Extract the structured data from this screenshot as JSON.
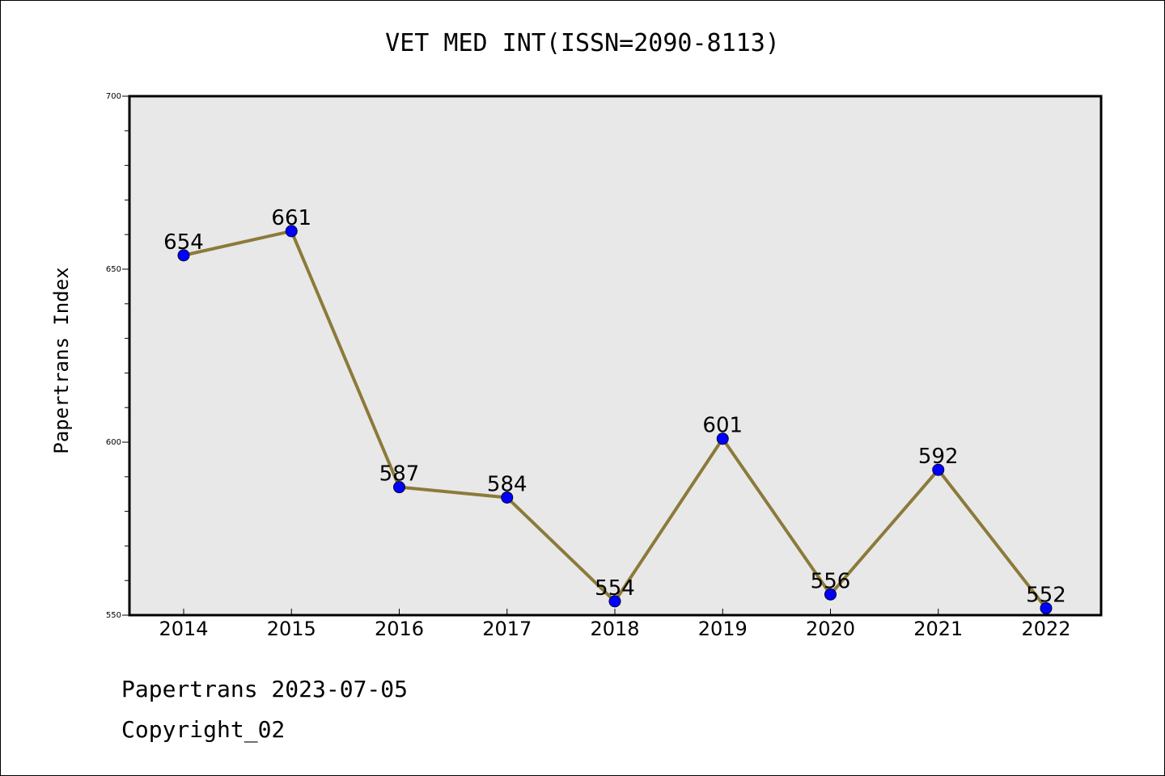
{
  "chart_data": {
    "type": "line",
    "title": "VET MED INT(ISSN=2090-8113)",
    "xlabel": "",
    "ylabel": "Papertrans Index",
    "categories": [
      "2014",
      "2015",
      "2016",
      "2017",
      "2018",
      "2019",
      "2020",
      "2021",
      "2022"
    ],
    "series": [
      {
        "values": [
          654,
          661,
          587,
          584,
          554,
          601,
          556,
          592,
          552
        ]
      }
    ],
    "ylim": [
      550,
      700
    ],
    "yticks": [
      "550",
      "600",
      "650",
      "700"
    ],
    "grid": false,
    "colors": {
      "line": "#8c7a3a",
      "marker": "#0000ff",
      "plot_bg": "#e8e8e8"
    }
  },
  "footer": {
    "line1": "Papertrans 2023-07-05",
    "line2": "Copyright_02"
  }
}
